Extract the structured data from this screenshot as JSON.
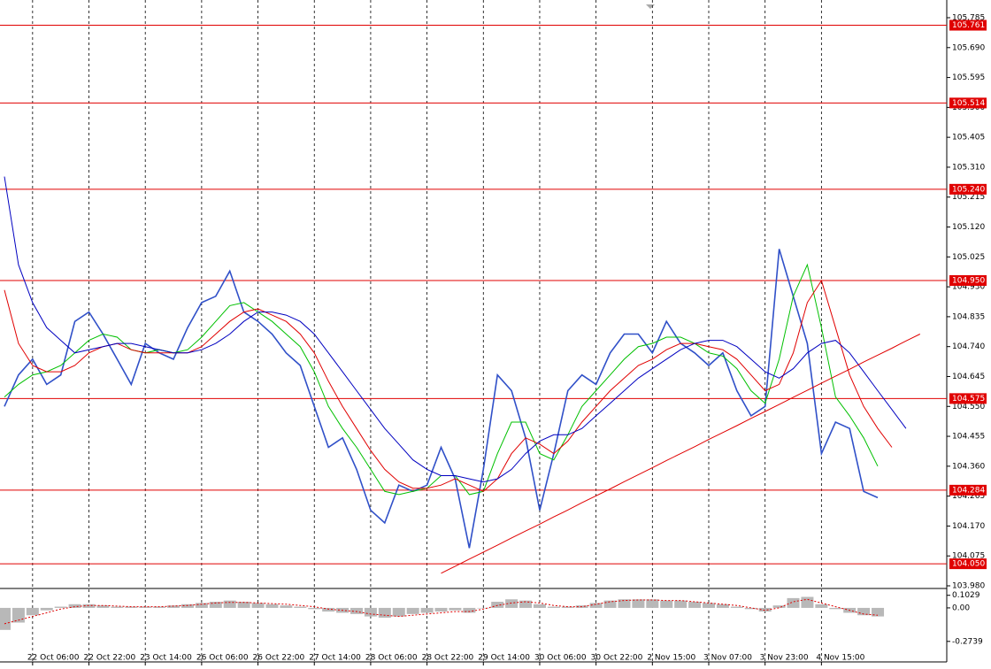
{
  "chart_data": [
    {
      "type": "line",
      "categories": [
        null,
        null,
        "22 Oct 06:00",
        null,
        null,
        null,
        "22 Oct 22:00",
        null,
        null,
        null,
        "23 Oct 14:00",
        null,
        null,
        null,
        "26 Oct 06:00",
        null,
        null,
        null,
        "26 Oct 22:00",
        null,
        null,
        null,
        "27 Oct 14:00",
        null,
        null,
        null,
        "28 Oct 06:00",
        null,
        null,
        null,
        "28 Oct 22:00",
        null,
        null,
        null,
        "29 Oct 14:00",
        null,
        null,
        null,
        "30 Oct 06:00",
        null,
        null,
        null,
        "30 Oct 22:00",
        null,
        null,
        null,
        "2 Nov 15:00",
        null,
        null,
        null,
        "3 Nov 07:00",
        null,
        null,
        null,
        "3 Nov 23:00",
        null,
        null,
        null,
        "4 Nov 15:00",
        null,
        null,
        null,
        null,
        null,
        null,
        null
      ],
      "ylim": [
        103.98,
        105.785
      ],
      "yticks": [
        105.785,
        {
          "value": 105.69,
          "label": "105.690"
        },
        105.595,
        {
          "value": 105.5,
          "label": "105.500"
        },
        105.405,
        {
          "value": 105.31,
          "label": "105.310"
        },
        105.215,
        {
          "value": 105.12,
          "label": "105.120"
        },
        105.025,
        {
          "value": 104.93,
          "label": "104.930"
        },
        104.835,
        {
          "value": 104.74,
          "label": "104.740"
        },
        104.645,
        {
          "value": 104.55,
          "label": "104.550"
        },
        104.455,
        {
          "value": 104.36,
          "label": "104.360"
        },
        104.265,
        {
          "value": 104.17,
          "label": "104.170"
        },
        104.075,
        {
          "value": 103.98,
          "label": "103.980"
        }
      ],
      "grid": true,
      "levels": [
        105.761,
        105.514,
        {
          "value": 105.24,
          "label": "105.240"
        },
        {
          "value": 104.95,
          "label": "104.950"
        },
        104.575,
        104.284,
        {
          "value": 104.05,
          "label": "104.050"
        }
      ],
      "level_color": "#e00000",
      "series": [
        {
          "color": "#3050c8",
          "width": 1.6,
          "values": [
            104.55,
            104.65,
            104.7,
            104.62,
            104.65,
            104.82,
            104.85,
            104.78,
            104.7,
            104.62,
            104.75,
            104.72,
            104.7,
            104.8,
            104.88,
            104.9,
            104.98,
            104.85,
            104.82,
            104.78,
            104.72,
            104.68,
            104.55,
            104.42,
            104.45,
            104.35,
            104.22,
            104.18,
            104.3,
            104.28,
            104.3,
            104.42,
            104.32,
            104.1,
            104.35,
            104.65,
            104.6,
            104.45,
            104.22,
            104.4,
            104.6,
            104.65,
            104.62,
            104.72,
            104.78,
            104.78,
            104.72,
            104.82,
            104.75,
            104.72,
            104.68,
            104.72,
            104.6,
            104.52,
            104.55,
            105.05,
            104.9,
            104.75,
            104.4,
            104.5,
            104.48,
            104.28,
            104.26,
            null,
            null,
            null
          ]
        },
        {
          "color": "#00c000",
          "width": 1,
          "values": [
            104.58,
            104.62,
            104.65,
            104.66,
            104.68,
            104.72,
            104.76,
            104.78,
            104.77,
            104.73,
            104.72,
            104.73,
            104.72,
            104.73,
            104.77,
            104.82,
            104.87,
            104.88,
            104.85,
            104.82,
            104.78,
            104.74,
            104.66,
            104.55,
            104.48,
            104.42,
            104.35,
            104.28,
            104.27,
            104.28,
            104.29,
            104.33,
            104.33,
            104.27,
            104.28,
            104.4,
            104.5,
            104.5,
            104.4,
            104.38,
            104.46,
            104.55,
            104.6,
            104.65,
            104.7,
            104.74,
            104.75,
            104.77,
            104.77,
            104.75,
            104.72,
            104.71,
            104.67,
            104.6,
            104.56,
            104.7,
            104.9,
            105.0,
            104.8,
            104.58,
            104.52,
            104.45,
            104.36,
            null,
            null,
            null
          ]
        },
        {
          "color": "#e00000",
          "width": 1,
          "values": [
            104.92,
            104.75,
            104.68,
            104.66,
            104.66,
            104.68,
            104.72,
            104.74,
            104.75,
            104.73,
            104.72,
            104.72,
            104.72,
            104.72,
            104.74,
            104.78,
            104.82,
            104.85,
            104.86,
            104.84,
            104.82,
            104.78,
            104.72,
            104.63,
            104.55,
            104.48,
            104.41,
            104.35,
            104.31,
            104.29,
            104.29,
            104.3,
            104.32,
            104.3,
            104.28,
            104.32,
            104.4,
            104.45,
            104.43,
            104.4,
            104.44,
            104.5,
            104.55,
            104.6,
            104.64,
            104.68,
            104.7,
            104.73,
            104.75,
            104.75,
            104.74,
            104.73,
            104.7,
            104.65,
            104.6,
            104.62,
            104.72,
            104.88,
            104.95,
            104.8,
            104.65,
            104.55,
            104.48,
            104.42,
            null,
            null
          ]
        },
        {
          "color": "#0000c0",
          "width": 1,
          "values": [
            105.28,
            105.0,
            104.88,
            104.8,
            104.76,
            104.72,
            104.73,
            104.74,
            104.75,
            104.75,
            104.74,
            104.73,
            104.72,
            104.72,
            104.73,
            104.75,
            104.78,
            104.82,
            104.85,
            104.85,
            104.84,
            104.82,
            104.78,
            104.72,
            104.66,
            104.6,
            104.54,
            104.48,
            104.43,
            104.38,
            104.35,
            104.33,
            104.33,
            104.32,
            104.31,
            104.32,
            104.35,
            104.4,
            104.44,
            104.46,
            104.46,
            104.48,
            104.52,
            104.56,
            104.6,
            104.64,
            104.67,
            104.7,
            104.73,
            104.75,
            104.76,
            104.76,
            104.74,
            104.7,
            104.66,
            104.64,
            104.67,
            104.72,
            104.75,
            104.76,
            104.72,
            104.66,
            104.6,
            104.54,
            104.48,
            null
          ]
        },
        {
          "color": "#e00000",
          "width": 1,
          "values": [
            null,
            null,
            null,
            null,
            null,
            null,
            null,
            null,
            null,
            null,
            null,
            null,
            null,
            null,
            null,
            null,
            null,
            null,
            null,
            null,
            null,
            null,
            null,
            null,
            null,
            null,
            null,
            null,
            null,
            null,
            null,
            104.02,
            104.042,
            104.065,
            104.087,
            104.109,
            104.132,
            104.154,
            104.176,
            104.199,
            104.221,
            104.244,
            104.266,
            104.288,
            104.311,
            104.333,
            104.355,
            104.378,
            104.4,
            104.422,
            104.445,
            104.467,
            104.489,
            104.512,
            104.534,
            104.556,
            104.579,
            104.601,
            104.624,
            104.646,
            104.668,
            104.691,
            104.713,
            104.735,
            104.758,
            104.78
          ]
        }
      ]
    },
    {
      "type": "bar",
      "ylim": [
        -0.42,
        0.137
      ],
      "yticks": [
        0.1029,
        {
          "value": 0,
          "label": "0.00"
        },
        -0.2739
      ],
      "series": [
        {
          "type": "bar",
          "color": "#b8b8b8",
          "values": [
            -0.18,
            -0.12,
            -0.06,
            -0.02,
            0.01,
            0.03,
            0.03,
            0.02,
            0.01,
            0.01,
            0.01,
            0.01,
            0.02,
            0.03,
            0.04,
            0.05,
            0.06,
            0.05,
            0.04,
            0.03,
            0.02,
            0.01,
            -0.01,
            -0.03,
            -0.04,
            -0.05,
            -0.07,
            -0.08,
            -0.07,
            -0.05,
            -0.04,
            -0.03,
            -0.02,
            -0.04,
            0.0,
            0.05,
            0.07,
            0.06,
            0.03,
            0.01,
            0.01,
            0.02,
            0.04,
            0.06,
            0.07,
            0.07,
            0.07,
            0.06,
            0.06,
            0.05,
            0.04,
            0.03,
            0.01,
            -0.01,
            -0.03,
            0.02,
            0.08,
            0.09,
            0.03,
            -0.01,
            -0.04,
            -0.06,
            -0.07,
            null,
            null,
            null
          ]
        },
        {
          "type": "line",
          "color": "#e00000",
          "values": [
            -0.13,
            -0.1,
            -0.07,
            -0.04,
            -0.01,
            0.01,
            0.02,
            0.02,
            0.015,
            0.01,
            0.01,
            0.01,
            0.015,
            0.02,
            0.03,
            0.04,
            0.045,
            0.045,
            0.04,
            0.035,
            0.03,
            0.02,
            0.01,
            -0.01,
            -0.02,
            -0.03,
            -0.05,
            -0.06,
            -0.07,
            -0.06,
            -0.05,
            -0.04,
            -0.03,
            -0.03,
            -0.01,
            0.02,
            0.04,
            0.05,
            0.04,
            0.02,
            0.01,
            0.01,
            0.03,
            0.05,
            0.06,
            0.065,
            0.065,
            0.06,
            0.06,
            0.05,
            0.04,
            0.03,
            0.02,
            0.0,
            -0.02,
            0.0,
            0.05,
            0.07,
            0.04,
            0.01,
            -0.02,
            -0.05,
            -0.06,
            null,
            null,
            null
          ]
        }
      ]
    }
  ]
}
